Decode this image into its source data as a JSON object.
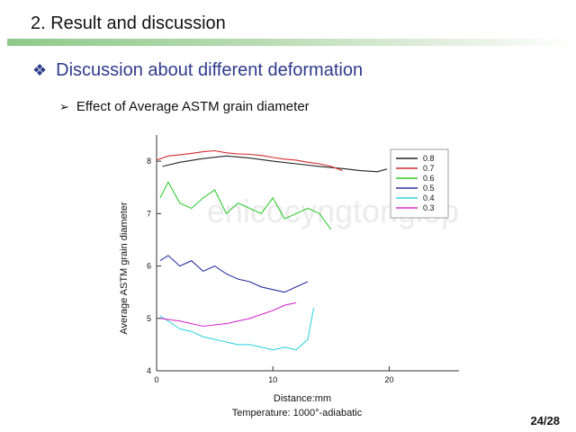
{
  "slide": {
    "section_title": "2. Result and discussion",
    "heading": "Discussion about different deformation",
    "subheading": "Effect of Average ASTM grain diameter",
    "page_number": "24/28",
    "bullet_icon": "diamond-bullet-icon",
    "arrow_icon": "arrow-bullet-icon",
    "watermark": "enicocyngtonglop",
    "accent_color": "#2e3a8c",
    "bar_color": "#8fc98a"
  },
  "chart_data": {
    "type": "line",
    "xlabel": "Distance:mm",
    "caption": "Temperature: 1000°-adiabatic",
    "ylabel": "Average ASTM grain diameter",
    "xlim": [
      0,
      26
    ],
    "ylim": [
      4,
      8.5
    ],
    "xticks": [
      0,
      10,
      20
    ],
    "yticks": [
      4,
      5,
      6,
      7,
      8
    ],
    "grid": false,
    "legend_position": "top-right",
    "series": [
      {
        "name": "0.8",
        "color": "#222222",
        "x": [
          0.5,
          2,
          4,
          6,
          8,
          10,
          12,
          14,
          16,
          17.5,
          19,
          19.8
        ],
        "y": [
          7.9,
          7.98,
          8.05,
          8.1,
          8.06,
          8.0,
          7.95,
          7.9,
          7.86,
          7.82,
          7.8,
          7.85
        ]
      },
      {
        "name": "0.7",
        "color": "#d42a2a",
        "x": [
          0,
          1,
          2,
          3,
          4,
          5,
          6,
          7,
          8,
          9,
          10,
          11,
          12,
          13,
          14,
          15,
          16
        ],
        "y": [
          8.02,
          8.1,
          8.12,
          8.15,
          8.18,
          8.2,
          8.16,
          8.14,
          8.13,
          8.11,
          8.07,
          8.04,
          8.02,
          7.98,
          7.95,
          7.9,
          7.82
        ]
      },
      {
        "name": "0.6",
        "color": "#33cc33",
        "x": [
          0.3,
          1,
          2,
          3,
          4,
          5,
          6,
          7,
          8,
          9,
          10,
          11,
          12,
          13,
          14,
          15
        ],
        "y": [
          7.3,
          7.6,
          7.2,
          7.1,
          7.3,
          7.45,
          7.0,
          7.2,
          7.1,
          7.0,
          7.3,
          6.9,
          7.0,
          7.1,
          7.0,
          6.7
        ]
      },
      {
        "name": "0.5",
        "color": "#2b2fa0",
        "x": [
          0.3,
          1,
          2,
          3,
          4,
          5,
          6,
          7,
          8,
          9,
          10,
          11,
          12,
          13
        ],
        "y": [
          6.1,
          6.2,
          6.0,
          6.1,
          5.9,
          6.0,
          5.85,
          5.75,
          5.7,
          5.6,
          5.55,
          5.5,
          5.6,
          5.7
        ]
      },
      {
        "name": "0.4",
        "color": "#33d4e0",
        "x": [
          0.3,
          1,
          2,
          3,
          4,
          5,
          6,
          7,
          8,
          9,
          10,
          11,
          12,
          13,
          13.5
        ],
        "y": [
          5.05,
          4.95,
          4.8,
          4.75,
          4.65,
          4.6,
          4.55,
          4.5,
          4.5,
          4.45,
          4.4,
          4.45,
          4.4,
          4.6,
          5.2
        ]
      },
      {
        "name": "0.3",
        "color": "#d430c8",
        "x": [
          0.3,
          2,
          4,
          6,
          8,
          10,
          11,
          12
        ],
        "y": [
          5.0,
          4.95,
          4.85,
          4.9,
          5.0,
          5.15,
          5.25,
          5.3
        ]
      }
    ]
  }
}
